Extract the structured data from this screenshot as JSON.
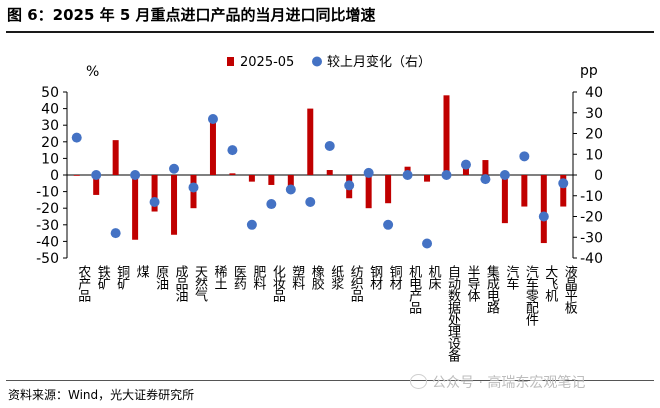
{
  "title": "图 6：2025 年 5 月重点进口产品的当月进口同比增速",
  "source": "资料来源：Wind，光大证券研究所",
  "watermark": "公众号 · 高瑞东宏观笔记",
  "colors": {
    "bar": "#c00000",
    "dot": "#4472c4",
    "axis": "#000000"
  },
  "chart_data": {
    "type": "bar",
    "categories": [
      "农产品",
      "铁矿",
      "铜矿",
      "煤",
      "原油",
      "成品油",
      "天然气",
      "稀土",
      "医药",
      "肥料",
      "化妆品",
      "塑料",
      "橡胶",
      "纸浆",
      "纺织品",
      "钢材",
      "铜材",
      "机电产品",
      "机床",
      "自动数据处理设备",
      "半导体",
      "集成电路",
      "汽车",
      "汽车零配件",
      "大飞机",
      "液晶平板"
    ],
    "series": [
      {
        "name": "2025-05",
        "type": "bar",
        "axis": "left",
        "values": [
          0,
          -12,
          21,
          -39,
          -22,
          -36,
          -20,
          33,
          1,
          -4,
          -6,
          -8,
          40,
          3,
          -14,
          -20,
          -17,
          5,
          -4,
          48,
          5,
          9,
          -29,
          -19,
          -41,
          -19
        ]
      },
      {
        "name": "较上月变化（右）",
        "type": "scatter",
        "axis": "right",
        "values": [
          18,
          0,
          -28,
          0,
          -13,
          3,
          -6,
          27,
          12,
          -24,
          -14,
          -7,
          -13,
          14,
          -5,
          1,
          -24,
          0,
          -33,
          0,
          5,
          -2,
          0,
          9,
          -20,
          -4
        ]
      }
    ],
    "left_axis": {
      "unit": "%",
      "ylim": [
        -50,
        50
      ],
      "ticks": [
        50,
        40,
        30,
        20,
        10,
        0,
        -10,
        -20,
        -30,
        -40,
        -50
      ]
    },
    "right_axis": {
      "unit": "pp",
      "ylim": [
        -40,
        40
      ],
      "ticks": [
        40,
        30,
        20,
        10,
        0,
        -10,
        -20,
        -30,
        -40
      ]
    },
    "legend_position": "top-center",
    "grid": false
  }
}
